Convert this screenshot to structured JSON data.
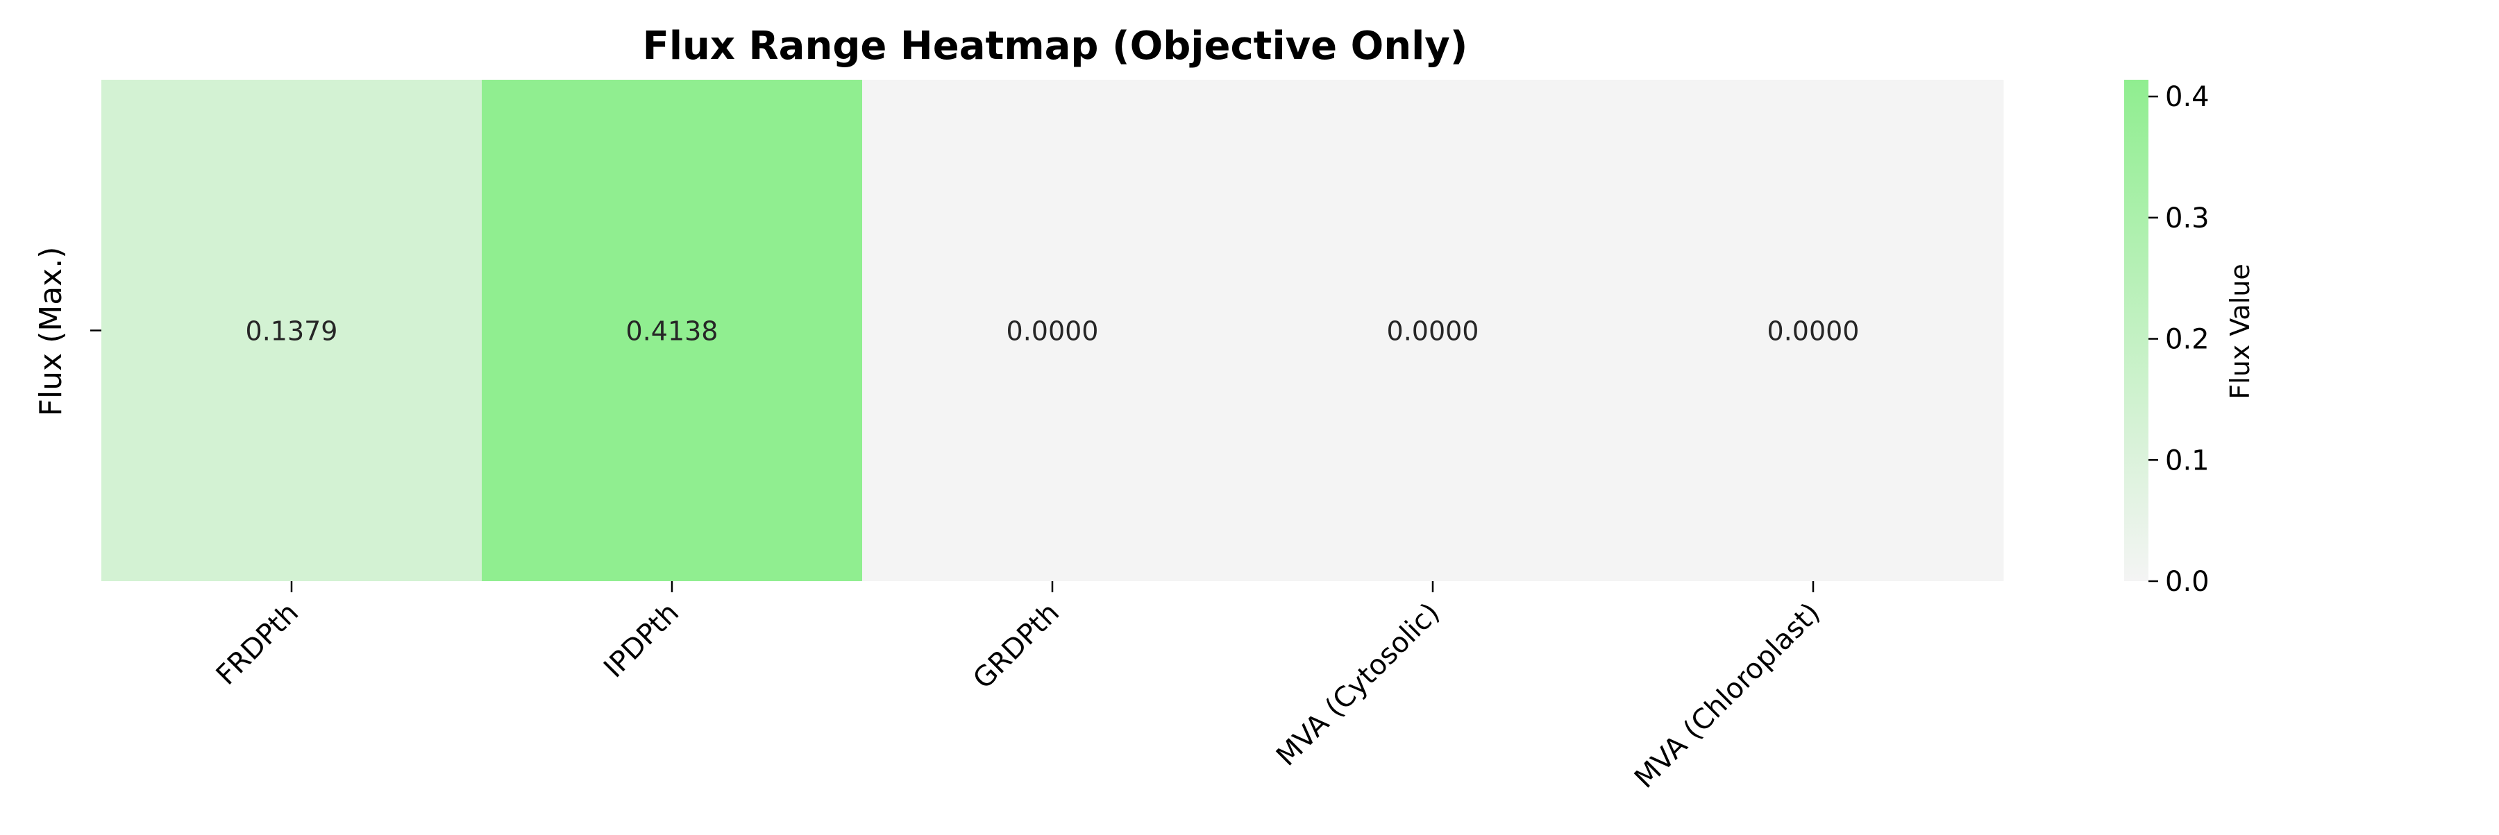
{
  "chart_data": {
    "type": "heatmap",
    "title": "Flux Range Heatmap (Objective Only)",
    "xlabel": "",
    "ylabel": "Flux (Max.)",
    "rows": [
      ""
    ],
    "categories": [
      "FRDPth",
      "IPDPth",
      "GRDPth",
      "MVA (Cytosolic)",
      "MVA (Chloroplast)"
    ],
    "values": [
      [
        0.1379,
        0.4138,
        0.0,
        0.0,
        0.0
      ]
    ],
    "cell_labels": [
      "0.1379",
      "0.4138",
      "0.0000",
      "0.0000",
      "0.0000"
    ],
    "colormap": {
      "low": "#f4f4f4",
      "high": "#90ee90"
    },
    "colorbar": {
      "label": "Flux Value",
      "range": [
        0.0,
        0.4138
      ],
      "ticks": [
        0.0,
        0.1,
        0.2,
        0.3,
        0.4
      ],
      "tick_labels": [
        "0.0",
        "0.1",
        "0.2",
        "0.3",
        "0.4"
      ]
    }
  }
}
